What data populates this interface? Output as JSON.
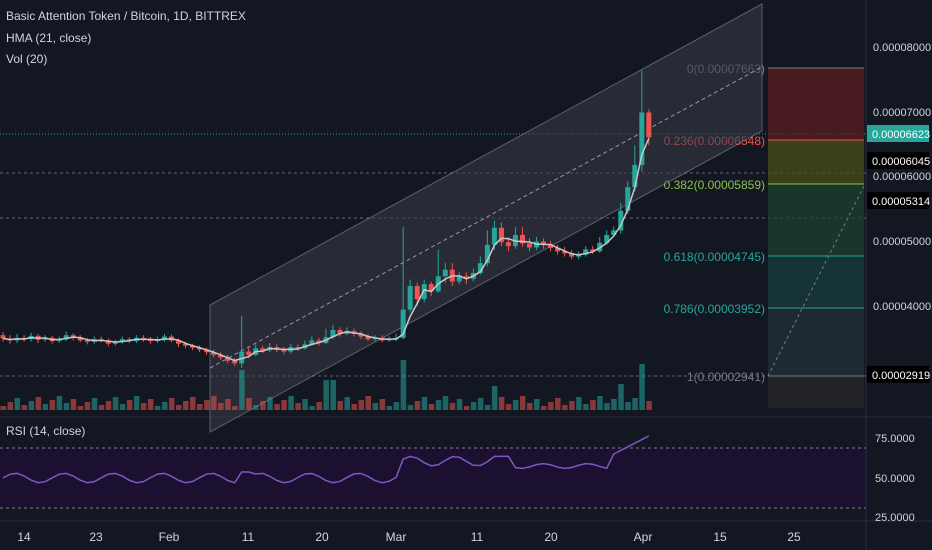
{
  "symbol_title": "Basic Attention Token / Bitcoin, 1D, BITTREX",
  "indicators": [
    "HMA (21, close)",
    "Vol (20)"
  ],
  "rsi_title": "RSI (14, close)",
  "colors": {
    "background": "#131722",
    "up": "#26a69a",
    "down": "#ef5350",
    "hma": "#c8c8c8",
    "rsi": "#7e57c2",
    "rsi_band": "#1e0f33",
    "last_price_tag": "#26a69a",
    "channel_fill": "#3a3d48"
  },
  "price_axis": {
    "labels": [
      "0.00008000",
      "0.00007000",
      "0.00006000",
      "0.00005000",
      "0.00004000"
    ],
    "tags": [
      {
        "text": "0.00006623",
        "style": "last"
      },
      {
        "text": "0.00006045",
        "style": "dark"
      },
      {
        "text": "0.00005314",
        "style": "dark"
      },
      {
        "text": "0.00002919",
        "style": "dark"
      }
    ]
  },
  "rsi_axis": {
    "labels": [
      "75.0000",
      "50.0000",
      "25.0000"
    ]
  },
  "time_axis": [
    "14",
    "23",
    "Feb",
    "11",
    "20",
    "Mar",
    "11",
    "20",
    "Apr",
    "15",
    "25"
  ],
  "fib_levels": [
    {
      "label": "0(0.00007663)",
      "color": "#787b86"
    },
    {
      "label": "0.236(0.00006548)",
      "color": "#ef5350"
    },
    {
      "label": "0.382(0.00005859)",
      "color": "#8bc34a"
    },
    {
      "label": "0.618(0.00004745)",
      "color": "#26a69a"
    },
    {
      "label": "0.786(0.00003952)",
      "color": "#26a69a"
    },
    {
      "label": "1(0.00002941)",
      "color": "#787b86"
    }
  ]
}
